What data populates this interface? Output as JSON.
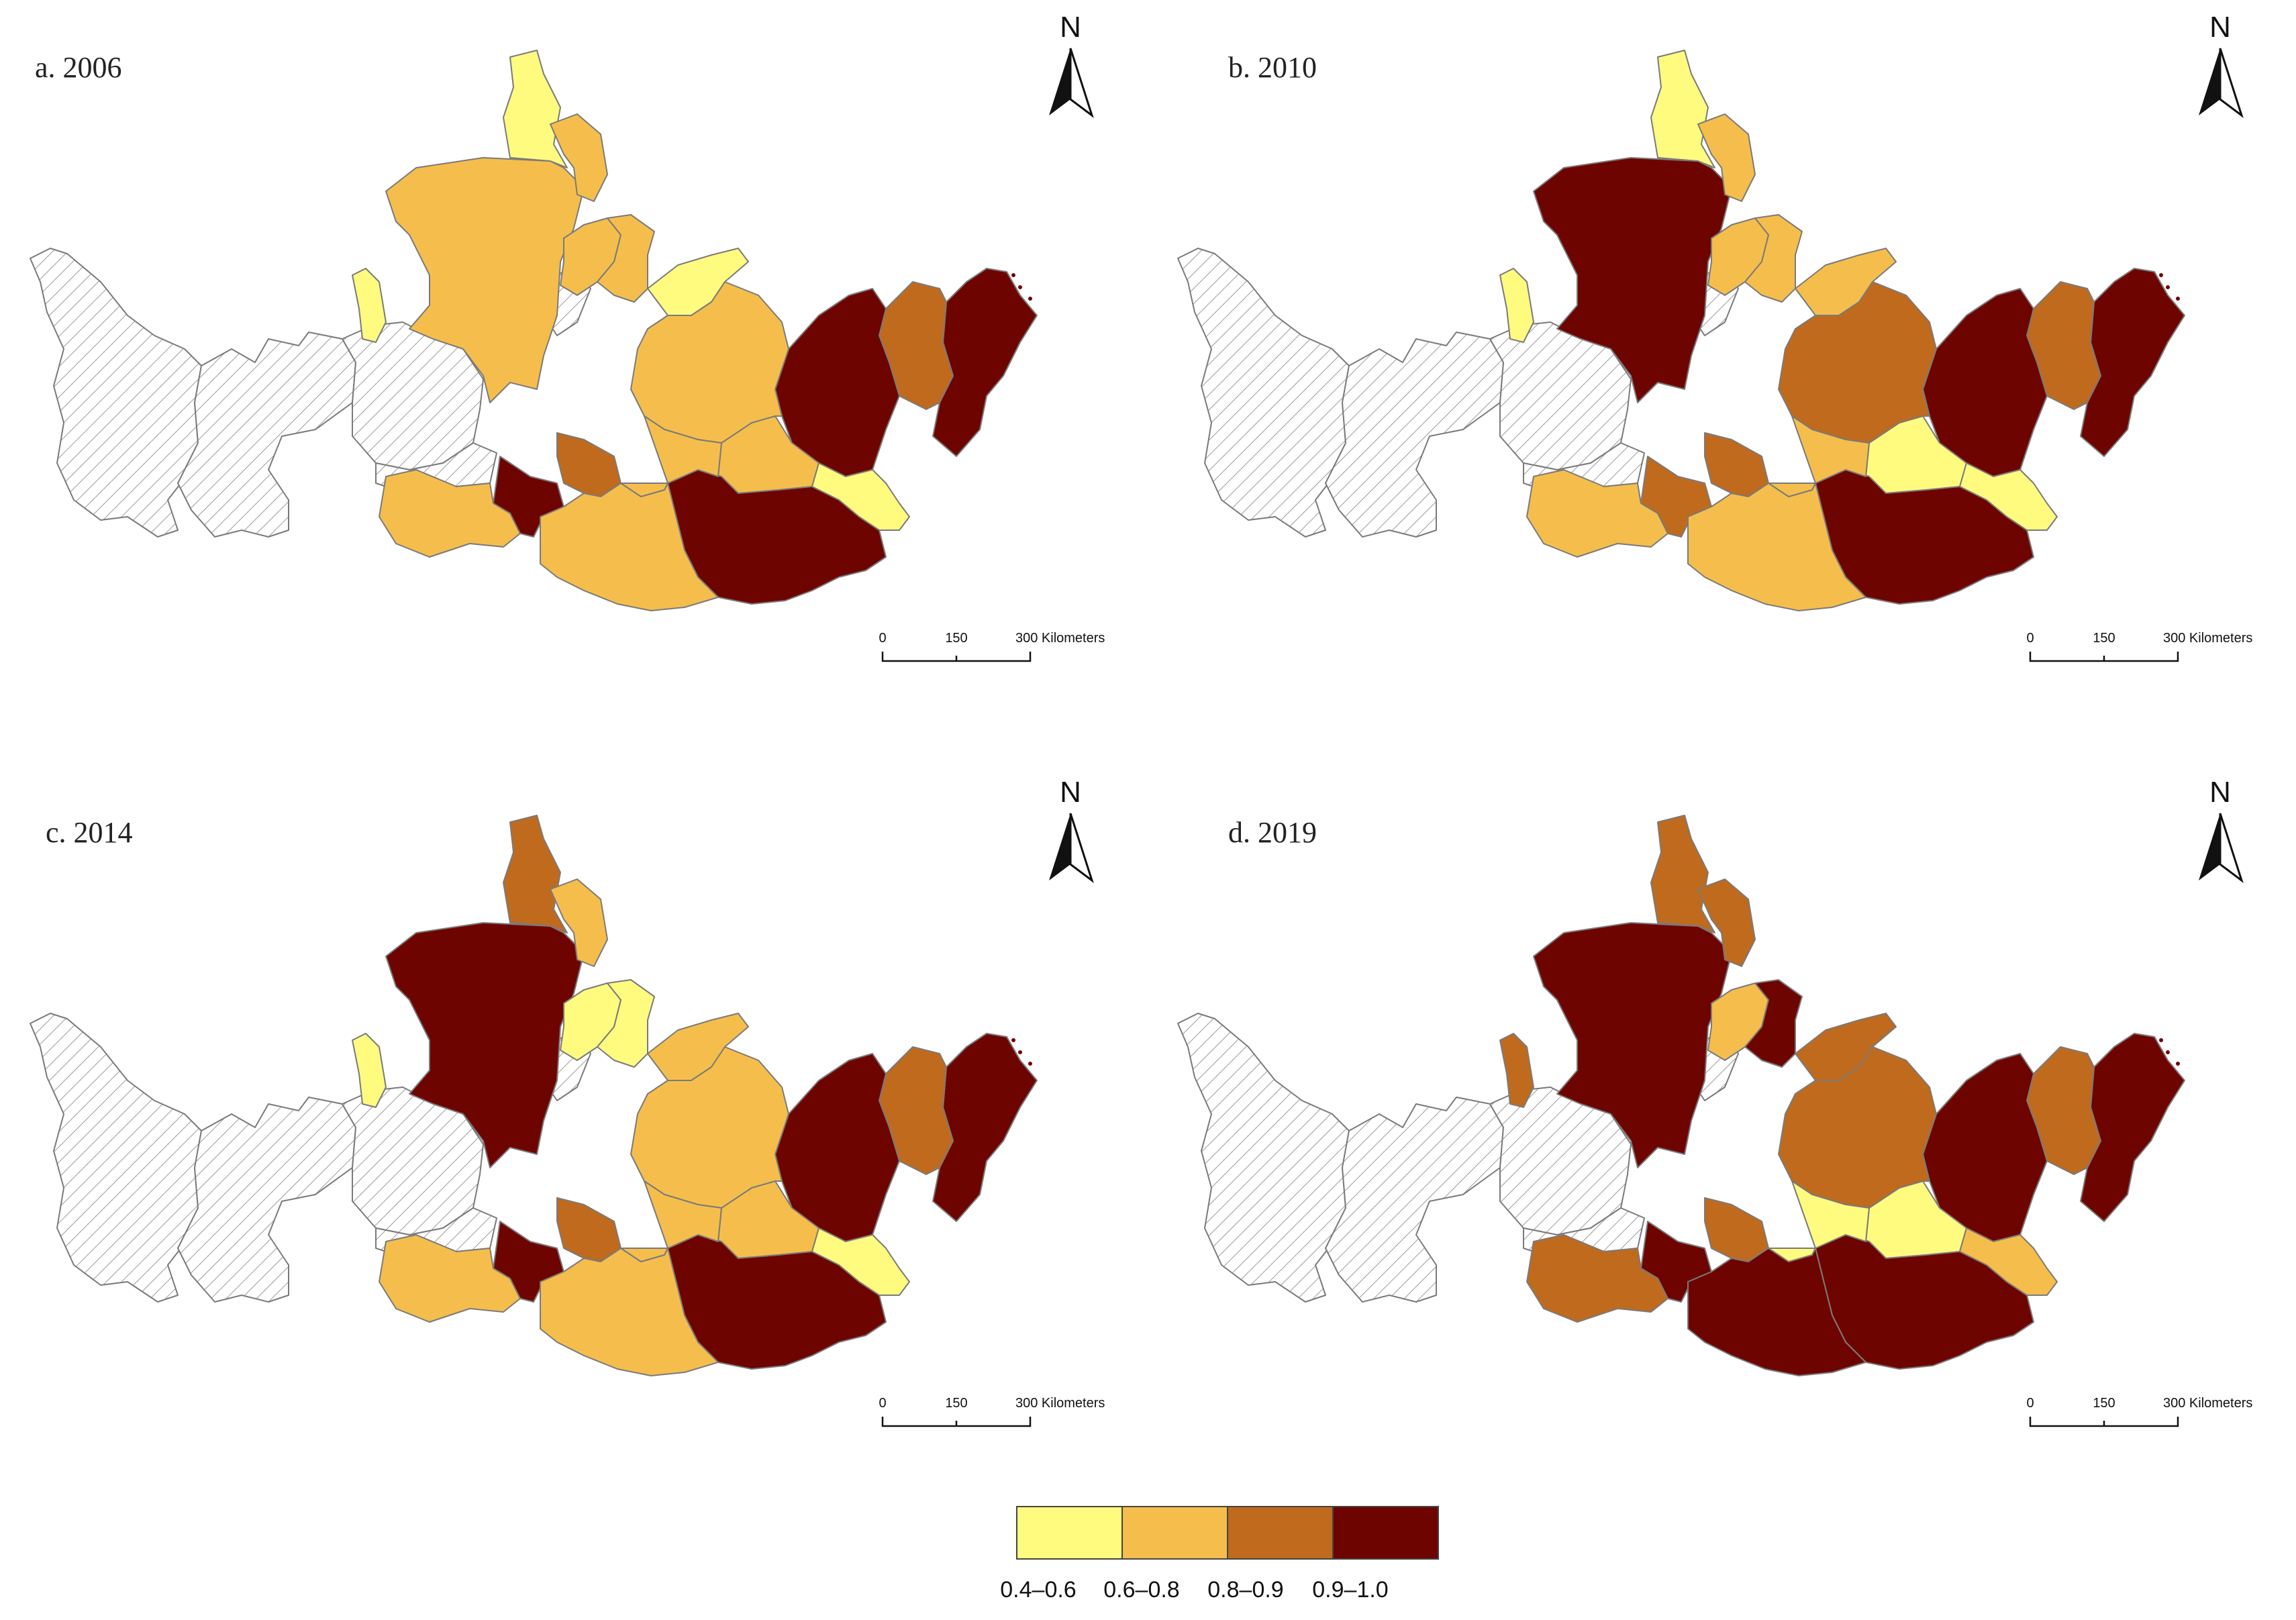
{
  "colors": {
    "class_1": "#FFFB7F",
    "class_2": "#F5BE4C",
    "class_3": "#C06A1E",
    "class_4": "#6E0400",
    "no_data_hatch": "#9a9a9a"
  },
  "panels": [
    {
      "title": "a. 2006",
      "north": "N",
      "scale": {
        "t0": "0",
        "t1": "150",
        "t2": "300 Kilometers"
      },
      "classes": {
        "A": 2,
        "B": 1,
        "C": 2,
        "D": 1,
        "E": 3,
        "F": 4,
        "G": 2,
        "H": 4,
        "I": 3,
        "J": 4,
        "K": 2,
        "L": 1,
        "M": 2,
        "N": 2,
        "O": 4,
        "P": 2,
        "Q": 1,
        "R": 2,
        "S": 2
      }
    },
    {
      "title": "b. 2010",
      "north": "N",
      "scale": {
        "t0": "0",
        "t1": "150",
        "t2": "300 Kilometers"
      },
      "classes": {
        "A": 4,
        "B": 1,
        "C": 2,
        "D": 1,
        "E": 3,
        "F": 3,
        "G": 2,
        "H": 4,
        "I": 3,
        "J": 4,
        "K": 1,
        "L": 2,
        "M": 2,
        "N": 3,
        "O": 4,
        "P": 2,
        "Q": 1,
        "R": 2,
        "S": 2
      }
    },
    {
      "title": "c. 2014",
      "north": "N",
      "scale": {
        "t0": "0",
        "t1": "150",
        "t2": "300 Kilometers"
      },
      "classes": {
        "A": 4,
        "B": 3,
        "C": 2,
        "D": 1,
        "E": 3,
        "F": 4,
        "G": 2,
        "H": 4,
        "I": 3,
        "J": 4,
        "K": 2,
        "L": 2,
        "M": 1,
        "N": 2,
        "O": 4,
        "P": 2,
        "Q": 1,
        "R": 1,
        "S": 2
      }
    },
    {
      "title": "d. 2019",
      "north": "N",
      "scale": {
        "t0": "0",
        "t1": "150",
        "t2": "300 Kilometers"
      },
      "classes": {
        "A": 4,
        "B": 3,
        "C": 3,
        "D": 3,
        "E": 3,
        "F": 4,
        "G": 3,
        "H": 4,
        "I": 3,
        "J": 4,
        "K": 1,
        "L": 3,
        "M": 2,
        "N": 3,
        "O": 4,
        "P": 4,
        "Q": 2,
        "R": 4,
        "S": 1
      }
    }
  ],
  "legend": {
    "labels": [
      "0.4–0.6",
      "0.6–0.8",
      "0.8–0.9",
      "0.9–1.0"
    ]
  }
}
